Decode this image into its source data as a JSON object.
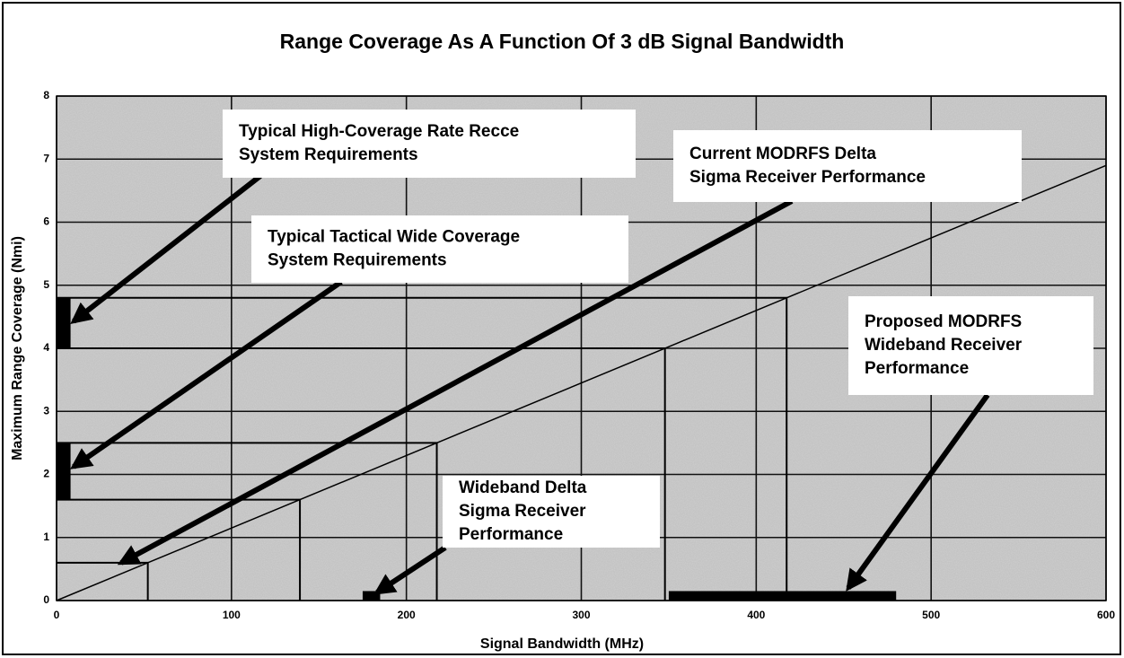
{
  "chart_data": {
    "type": "line",
    "title": "Range Coverage As A Function Of 3 dB Signal Bandwidth",
    "x_label": "Signal Bandwidth (MHz)",
    "y_label": "Maximum Range Coverage (Nmi)",
    "xlim": [
      0,
      600
    ],
    "ylim": [
      0,
      8
    ],
    "xticks": [
      0,
      100,
      200,
      300,
      400,
      500,
      600
    ],
    "yticks": [
      0,
      1,
      2,
      3,
      4,
      5,
      6,
      7,
      8
    ],
    "grid": true,
    "line": {
      "x": [
        0,
        600
      ],
      "values": [
        0,
        6.9
      ],
      "color": "#000000"
    },
    "guides": [
      4.8,
      4.0,
      2.5,
      1.6,
      0.6
    ],
    "regions": [
      {
        "x": [
          0,
          8
        ],
        "y": [
          4.0,
          4.8
        ]
      },
      {
        "x": [
          0,
          8
        ],
        "y": [
          1.6,
          2.5
        ]
      },
      {
        "x": [
          175,
          185
        ],
        "y": [
          0,
          0.15
        ]
      },
      {
        "x": [
          350,
          480
        ],
        "y": [
          0,
          0.15
        ]
      }
    ],
    "annotations": [
      {
        "lines": [
          "Typical High-Coverage Rate Recce",
          "System Requirements"
        ]
      },
      {
        "lines": [
          "Typical Tactical Wide Coverage",
          "System Requirements"
        ]
      },
      {
        "lines": [
          "Current MODRFS Delta",
          "Sigma Receiver Performance"
        ]
      },
      {
        "lines": [
          "Proposed MODRFS",
          "Wideband Receiver",
          "Performance"
        ]
      },
      {
        "lines": [
          "Wideband Delta",
          "Sigma Receiver",
          "Performance"
        ]
      }
    ]
  }
}
